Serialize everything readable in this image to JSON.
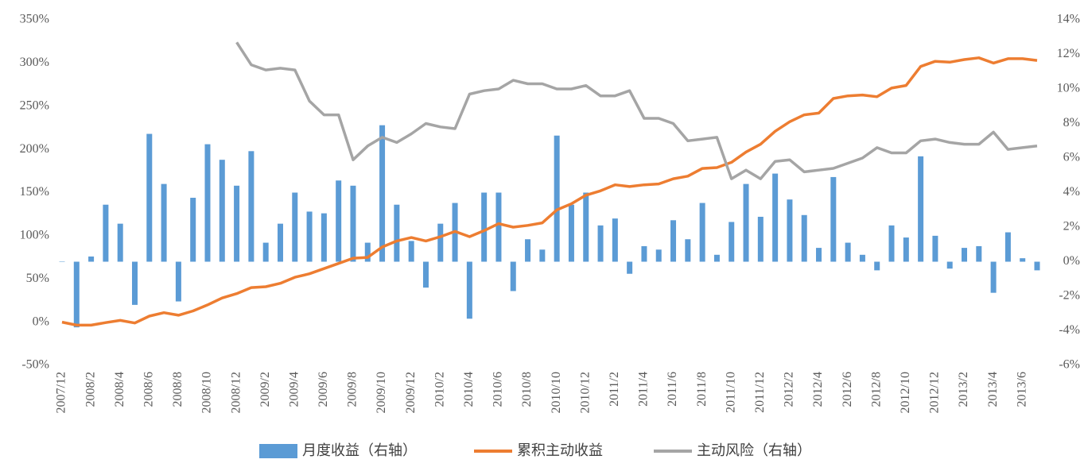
{
  "chart_data": {
    "type": "combo",
    "categories": [
      "2007/12",
      null,
      "2008/2",
      null,
      "2008/4",
      null,
      "2008/6",
      null,
      "2008/8",
      null,
      "2008/10",
      null,
      "2008/12",
      null,
      "2009/2",
      null,
      "2009/4",
      null,
      "2009/6",
      null,
      "2009/8",
      null,
      "2009/10",
      null,
      "2009/12",
      null,
      "2010/2",
      null,
      "2010/4",
      null,
      "2010/6",
      null,
      "2010/8",
      null,
      "2010/10",
      null,
      "2010/12",
      null,
      "2011/2",
      null,
      "2011/4",
      null,
      "2011/6",
      null,
      "2011/8",
      null,
      "2011/10",
      null,
      "2011/12",
      null,
      "2012/2",
      null,
      "2012/4",
      null,
      "2012/6",
      null,
      "2012/8",
      null,
      "2012/10",
      null,
      "2012/12",
      null,
      "2013/2",
      null,
      "2013/4",
      null,
      "2013/6",
      null
    ],
    "series": [
      {
        "name": "月度收益（右轴）",
        "type": "bar",
        "axis": "y2",
        "color": "#5b9bd5",
        "values": [
          0,
          -3.8,
          0.3,
          3.3,
          2.2,
          -2.5,
          7.4,
          4.5,
          -2.3,
          3.7,
          6.8,
          5.9,
          4.4,
          6.4,
          1.1,
          2.2,
          4.0,
          2.9,
          2.8,
          4.7,
          4.4,
          1.1,
          7.9,
          3.3,
          1.2,
          -1.5,
          2.2,
          3.4,
          -3.3,
          4.0,
          4.0,
          -1.7,
          1.3,
          0.7,
          7.3,
          3.3,
          4.0,
          2.1,
          2.5,
          -0.7,
          0.9,
          0.7,
          2.4,
          1.3,
          3.4,
          0.4,
          2.3,
          4.5,
          2.6,
          5.1,
          3.6,
          2.7,
          0.8,
          4.9,
          1.1,
          0.4,
          -0.5,
          2.1,
          1.4,
          6.1,
          1.5,
          -0.4,
          0.8,
          0.9,
          -1.8,
          1.7,
          0.2,
          -0.5
        ]
      },
      {
        "name": "累积主动收益",
        "type": "line",
        "color": "#ed7d31",
        "values": [
          0,
          -3.5,
          -3.5,
          -0.5,
          2,
          -1,
          7,
          11,
          8,
          13,
          20,
          28,
          33,
          40,
          41,
          45,
          52,
          56,
          62,
          68,
          74,
          75,
          87,
          94,
          98,
          94,
          99,
          105,
          99,
          106,
          114,
          110,
          112,
          115,
          130,
          137,
          147,
          152,
          159,
          157,
          159,
          160,
          166,
          169,
          178,
          179,
          185,
          197,
          206,
          221,
          232,
          240,
          242,
          259,
          262,
          263,
          261,
          271,
          274,
          296,
          302,
          301,
          304,
          306,
          300,
          305,
          305,
          303
        ]
      },
      {
        "name": "主动风险（右轴）",
        "type": "line",
        "axis": "y2",
        "color": "#a5a5a5",
        "values": [
          null,
          null,
          null,
          null,
          null,
          null,
          null,
          null,
          null,
          null,
          null,
          null,
          12.7,
          11.4,
          11.1,
          11.2,
          11.1,
          9.3,
          8.5,
          8.5,
          5.9,
          6.7,
          7.2,
          6.9,
          7.4,
          8.0,
          7.8,
          7.7,
          9.7,
          9.9,
          10.0,
          10.5,
          10.3,
          10.3,
          10.0,
          10.0,
          10.2,
          9.6,
          9.6,
          9.9,
          8.3,
          8.3,
          8.0,
          7.0,
          7.1,
          7.2,
          4.8,
          5.3,
          4.8,
          5.8,
          5.9,
          5.2,
          5.3,
          5.4,
          5.7,
          6.0,
          6.6,
          6.3,
          6.3,
          7.0,
          7.1,
          6.9,
          6.8,
          6.8,
          7.5,
          6.5,
          6.6,
          6.7
        ]
      }
    ],
    "ylim": [
      -50,
      350
    ],
    "yticks": [
      {
        "value": -50,
        "label": "-50%"
      },
      {
        "value": 0,
        "label": "0%"
      },
      {
        "value": 50,
        "label": "50%"
      },
      {
        "value": 100,
        "label": "100%"
      },
      {
        "value": 150,
        "label": "150%"
      },
      {
        "value": 200,
        "label": "200%"
      },
      {
        "value": 250,
        "label": "250%"
      },
      {
        "value": 300,
        "label": "300%"
      },
      {
        "value": 350,
        "label": "350%"
      }
    ],
    "y2lim": [
      -6,
      14
    ],
    "y2ticks": [
      {
        "value": -6,
        "label": "-6%"
      },
      {
        "value": -4,
        "label": "-4%"
      },
      {
        "value": -2,
        "label": "-2%"
      },
      {
        "value": 0,
        "label": "0%"
      },
      {
        "value": 2,
        "label": "2%"
      },
      {
        "value": 4,
        "label": "4%"
      },
      {
        "value": 6,
        "label": "6%"
      },
      {
        "value": 8,
        "label": "8%"
      },
      {
        "value": 10,
        "label": "10%"
      },
      {
        "value": 12,
        "label": "12%"
      },
      {
        "value": 14,
        "label": "14%"
      }
    ],
    "legend": "bottom",
    "grid": false
  }
}
